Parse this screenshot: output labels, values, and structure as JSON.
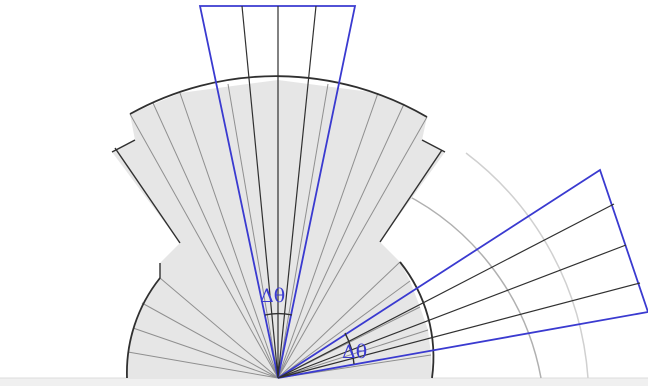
{
  "labels": {
    "top_angle": "Δθ",
    "right_angle": "Δθ"
  },
  "colors": {
    "highlight": "#3a3ad0",
    "sector_fill": "#e6e6e6",
    "sector_line": "#8c8c8c",
    "arc_dark": "#303030",
    "arc_light": "#b4b4b4",
    "baseline": "#dcdcdc"
  }
}
